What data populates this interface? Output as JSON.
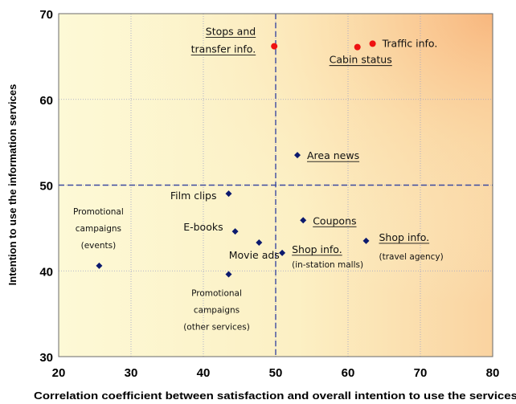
{
  "colors": {
    "bg_light": "#fdf9d6",
    "bg_mid": "#fbe9b4",
    "bg_corner": "#f9c189",
    "grid": "#9aa0c8",
    "divider": "#3c4aa0",
    "series_high": "#ee1111",
    "series_other": "#0c1a6e"
  },
  "chart_data": {
    "type": "scatter",
    "xlabel": "Correlation coefficient between satisfaction and overall intention to use the services",
    "ylabel": "Intention to use the information services",
    "xlim": [
      20,
      80
    ],
    "ylim": [
      30,
      70
    ],
    "xticks": [
      "20",
      "30",
      "40",
      "50",
      "60",
      "70",
      "80"
    ],
    "yticks": [
      "30",
      "40",
      "50",
      "60",
      "70"
    ],
    "grid": true,
    "dividers": {
      "x": 50,
      "y": 50
    },
    "points": [
      {
        "label": "Stops and\ntransfer info.",
        "x": 49.8,
        "y": 66.2,
        "marker": "circle",
        "group": "high"
      },
      {
        "label": "Cabin status",
        "x": 61.3,
        "y": 66.1,
        "marker": "circle",
        "group": "high"
      },
      {
        "label": "Traffic info.",
        "x": 63.4,
        "y": 66.5,
        "marker": "circle",
        "group": "high"
      },
      {
        "label": "Area news",
        "x": 53.0,
        "y": 53.5,
        "marker": "diamond",
        "group": "other"
      },
      {
        "label": "Film clips",
        "x": 43.5,
        "y": 49.0,
        "marker": "diamond",
        "group": "other"
      },
      {
        "label": "E-books",
        "x": 44.4,
        "y": 44.6,
        "marker": "diamond",
        "group": "other"
      },
      {
        "label": "Coupons",
        "x": 53.8,
        "y": 45.9,
        "marker": "diamond",
        "group": "other"
      },
      {
        "label": "Movie ads",
        "x": 47.7,
        "y": 43.3,
        "marker": "diamond",
        "group": "other"
      },
      {
        "label": "Shop info.\n(in-station malls)",
        "x": 50.9,
        "y": 42.1,
        "marker": "diamond",
        "group": "other"
      },
      {
        "label": "Shop info.\n(travel agency)",
        "x": 62.5,
        "y": 43.5,
        "marker": "diamond",
        "group": "other"
      },
      {
        "label": "Promotional\ncampaigns\n(events)",
        "x": 25.6,
        "y": 40.6,
        "marker": "diamond",
        "group": "other"
      },
      {
        "label": "Promotional\ncampaigns\n(other services)",
        "x": 43.5,
        "y": 39.6,
        "marker": "diamond",
        "group": "other"
      }
    ]
  }
}
